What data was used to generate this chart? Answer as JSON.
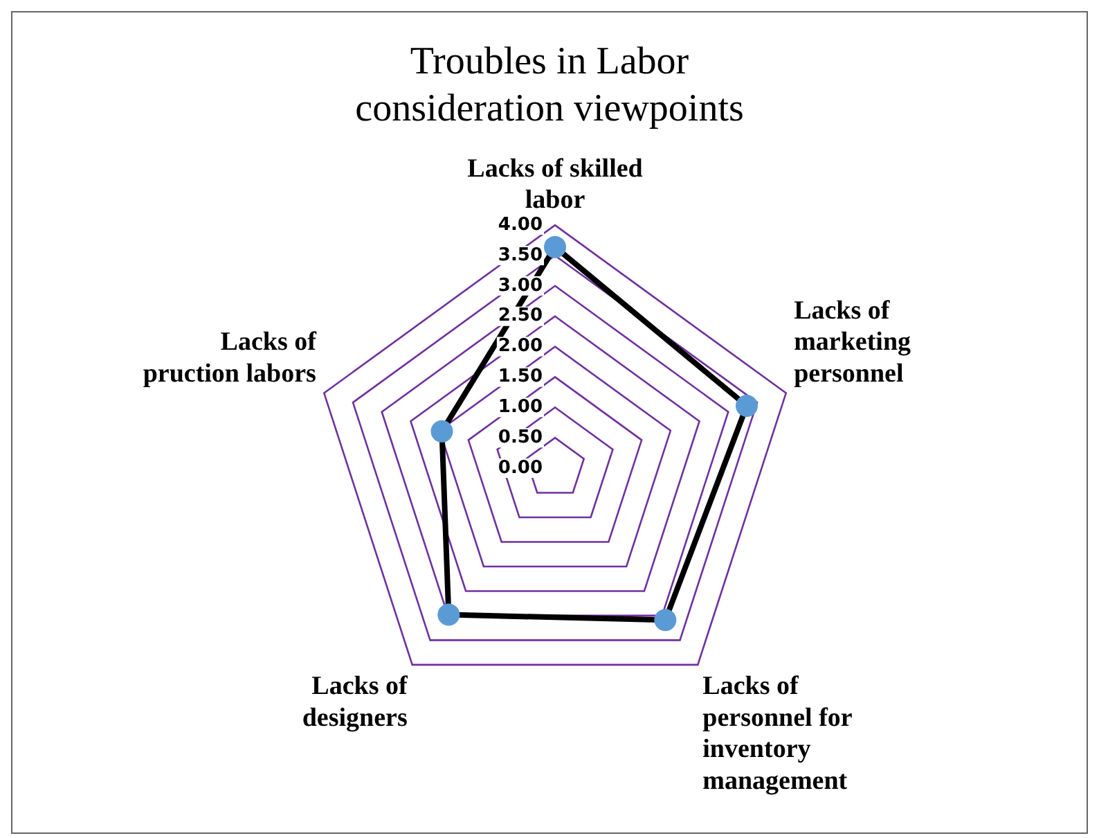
{
  "chart_data": {
    "type": "radar",
    "title": "Troubles in Labor\nconsideration viewpoints",
    "categories": [
      "Lacks of skilled labor",
      "Lacks of marketing personnel",
      "Lacks of personnel for inventory management",
      "Lacks of designers",
      "Lacks of pruction labors"
    ],
    "series": [
      {
        "color": "#000000",
        "values": [
          3.64,
          3.32,
          3.09,
          2.98,
          1.96
        ]
      }
    ],
    "ylim": [
      0,
      4
    ],
    "yticks": [
      {
        "value": 0,
        "label": "0.00"
      },
      {
        "value": 0.5,
        "label": "0.50"
      },
      {
        "value": 1,
        "label": "1.00"
      },
      {
        "value": 1.5,
        "label": "1.50"
      },
      {
        "value": 2,
        "label": "2.00"
      },
      {
        "value": 2.5,
        "label": "2.50"
      },
      {
        "value": 3,
        "label": "3.00"
      },
      {
        "value": 3.5,
        "label": "3.50"
      },
      {
        "value": 4,
        "label": "4.00"
      }
    ],
    "grid": true,
    "legend": false,
    "marker": "circle",
    "line_style": "solid"
  }
}
